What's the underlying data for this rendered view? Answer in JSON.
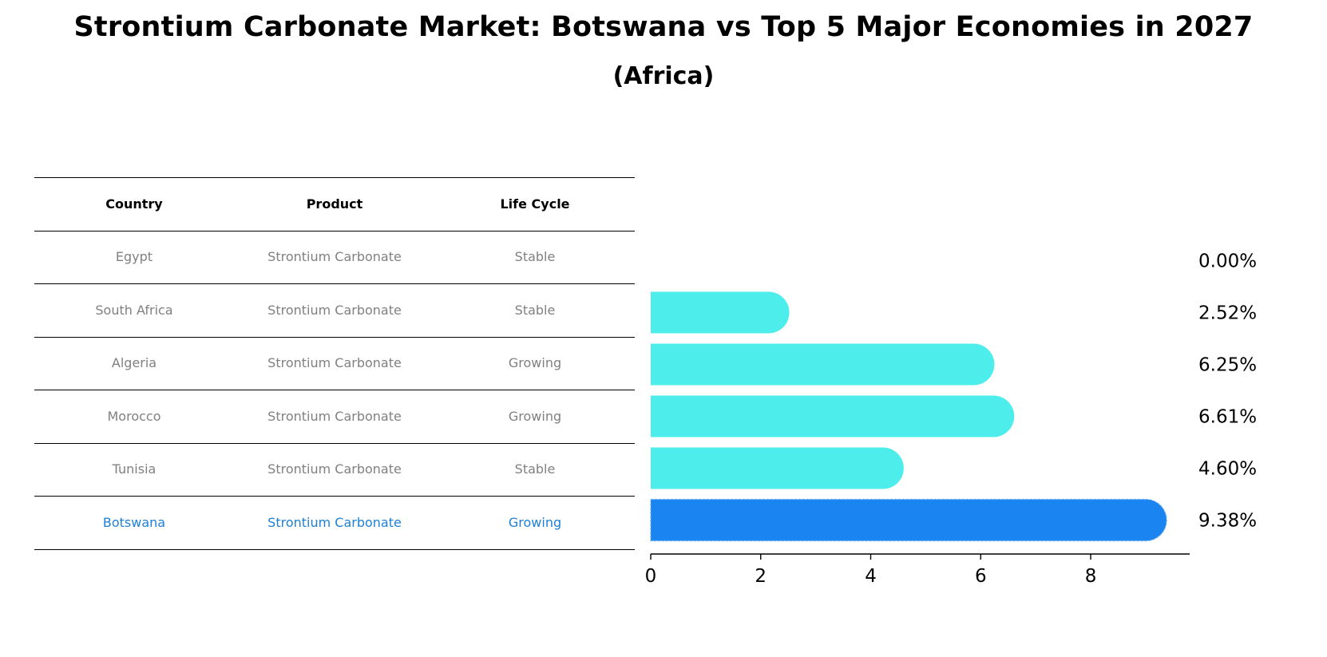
{
  "title": "Strontium Carbonate Market: Botswana vs Top 5 Major Economies in 2027",
  "subtitle": "(Africa)",
  "table": {
    "headers": [
      "Country",
      "Product",
      "Life Cycle"
    ],
    "rows": [
      {
        "country": "Egypt",
        "product": "Strontium Carbonate",
        "life_cycle": "Stable"
      },
      {
        "country": "South Africa",
        "product": "Strontium Carbonate",
        "life_cycle": "Stable"
      },
      {
        "country": "Algeria",
        "product": "Strontium Carbonate",
        "life_cycle": "Growing"
      },
      {
        "country": "Morocco",
        "product": "Strontium Carbonate",
        "life_cycle": "Growing"
      },
      {
        "country": "Tunisia",
        "product": "Strontium Carbonate",
        "life_cycle": "Stable"
      },
      {
        "country": "Botswana",
        "product": "Strontium Carbonate",
        "life_cycle": "Growing"
      }
    ]
  },
  "colors": {
    "bar": "#4dedec",
    "highlight": "#1a85f0",
    "highlight_text": "#1e7fd6",
    "muted_text": "#808080"
  },
  "chart_data": {
    "type": "bar",
    "orientation": "horizontal",
    "categories": [
      "Egypt",
      "South Africa",
      "Algeria",
      "Morocco",
      "Tunisia",
      "Botswana"
    ],
    "values": [
      0.0,
      2.52,
      6.25,
      6.61,
      4.6,
      9.38
    ],
    "value_labels": [
      "0.00%",
      "2.52%",
      "6.25%",
      "6.61%",
      "4.60%",
      "9.38%"
    ],
    "highlight": "Botswana",
    "xlim": [
      0,
      9.8
    ],
    "xticks": [
      0,
      2,
      4,
      6,
      8
    ],
    "xtick_labels": [
      "0",
      "2",
      "4",
      "6",
      "8"
    ],
    "xlabel": "",
    "ylabel": "",
    "grid": false
  }
}
